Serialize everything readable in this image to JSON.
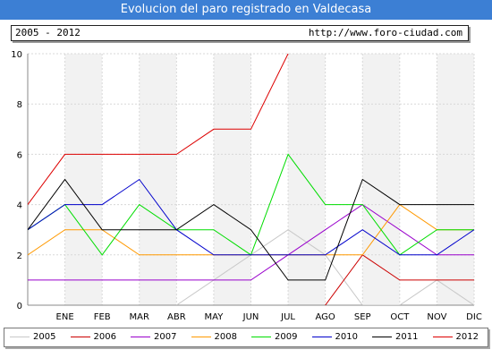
{
  "header": {
    "title": "Evolucion del paro registrado en Valdecasa",
    "period": "2005 - 2012",
    "url": "http://www.foro-ciudad.com"
  },
  "chart_data": {
    "type": "line",
    "categories": [
      "",
      "ENE",
      "FEB",
      "MAR",
      "ABR",
      "MAY",
      "JUN",
      "JUL",
      "AGO",
      "SEP",
      "OCT",
      "NOV",
      "DIC"
    ],
    "ylim": [
      0,
      10
    ],
    "yticks": [
      0,
      2,
      4,
      6,
      8,
      10
    ],
    "grid": true,
    "legend_position": "bottom",
    "series": [
      {
        "name": "2005",
        "color": "#c8c8c8",
        "values": [
          null,
          null,
          null,
          null,
          0,
          1,
          2,
          3,
          2,
          0,
          0,
          1,
          0
        ]
      },
      {
        "name": "2006",
        "color": "#cc0000",
        "values": [
          null,
          null,
          null,
          null,
          null,
          null,
          null,
          null,
          0,
          2,
          1,
          1,
          1
        ]
      },
      {
        "name": "2007",
        "color": "#9900cc",
        "values": [
          1,
          1,
          1,
          1,
          1,
          1,
          1,
          2,
          3,
          4,
          3,
          2,
          2
        ]
      },
      {
        "name": "2008",
        "color": "#ff9900",
        "values": [
          2,
          3,
          3,
          2,
          2,
          2,
          2,
          2,
          2,
          2,
          4,
          3,
          3
        ]
      },
      {
        "name": "2009",
        "color": "#00dd00",
        "values": [
          3,
          4,
          2,
          4,
          3,
          3,
          2,
          6,
          4,
          4,
          2,
          3,
          3
        ]
      },
      {
        "name": "2010",
        "color": "#0000cc",
        "values": [
          3,
          4,
          4,
          5,
          3,
          2,
          2,
          2,
          2,
          3,
          2,
          2,
          3
        ]
      },
      {
        "name": "2011",
        "color": "#000000",
        "values": [
          3,
          5,
          3,
          3,
          3,
          4,
          3,
          1,
          1,
          5,
          4,
          4,
          4
        ]
      },
      {
        "name": "2012",
        "color": "#dd0000",
        "values": [
          4,
          6,
          6,
          6,
          6,
          7,
          7,
          10,
          null,
          null,
          null,
          null,
          null
        ]
      }
    ]
  }
}
